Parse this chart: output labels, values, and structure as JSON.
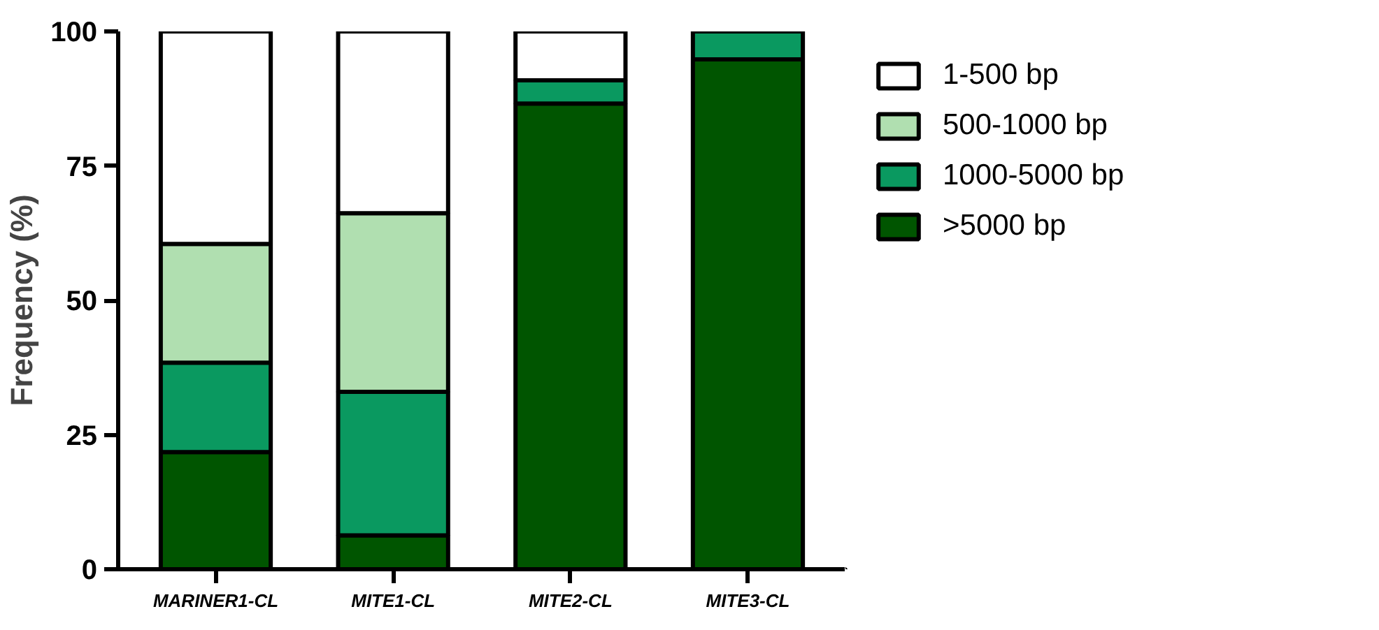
{
  "chart_data": {
    "type": "bar",
    "stacked": true,
    "ylabel": "Frequency (%)",
    "categories": [
      "MARINER1-CL",
      "MITE1-CL",
      "MITE2-CL",
      "MITE3-CL"
    ],
    "ylim": [
      0,
      100
    ],
    "yticks": [
      0,
      25,
      50,
      75,
      100
    ],
    "grid": false,
    "legend": "right",
    "series": [
      {
        "name": ">5000 bp",
        "color": "#005500",
        "values": [
          21.8,
          6.3,
          86.6,
          94.8
        ]
      },
      {
        "name": "1000-5000 bp",
        "color": "#0a9960",
        "values": [
          16.6,
          26.7,
          4.3,
          5.2
        ]
      },
      {
        "name": "500-1000 bp",
        "color": "#b0dfb0",
        "values": [
          22.1,
          33.2,
          0,
          0
        ]
      },
      {
        "name": "1-500 bp",
        "color": "#ffffff",
        "values": [
          39.5,
          33.8,
          9.1,
          0
        ]
      }
    ]
  }
}
